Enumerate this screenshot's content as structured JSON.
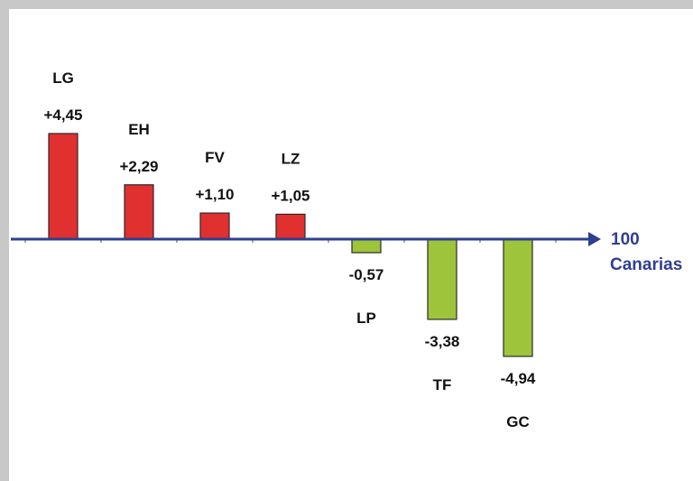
{
  "chart_data": {
    "type": "bar",
    "categories": [
      "LG",
      "EH",
      "FV",
      "LZ",
      "LP",
      "TF",
      "GC"
    ],
    "values": [
      4.45,
      2.29,
      1.1,
      1.05,
      -0.57,
      -3.38,
      -4.94
    ],
    "value_labels": [
      "+4,45",
      "+2,29",
      "+1,10",
      "+1,05",
      "-0,57",
      "-3,38",
      "-4,94"
    ],
    "baseline": 100,
    "axis_label_line1": "100",
    "axis_label_line2": "Canarias",
    "ylim": [
      -6,
      6
    ],
    "grid": false,
    "colors": {
      "positive": "#e03030",
      "negative": "#9dc43a",
      "axis": "#2f3f8f",
      "bar_border": "#2a2a2a",
      "text": "#111111",
      "frame": "#c8c8c8"
    }
  }
}
